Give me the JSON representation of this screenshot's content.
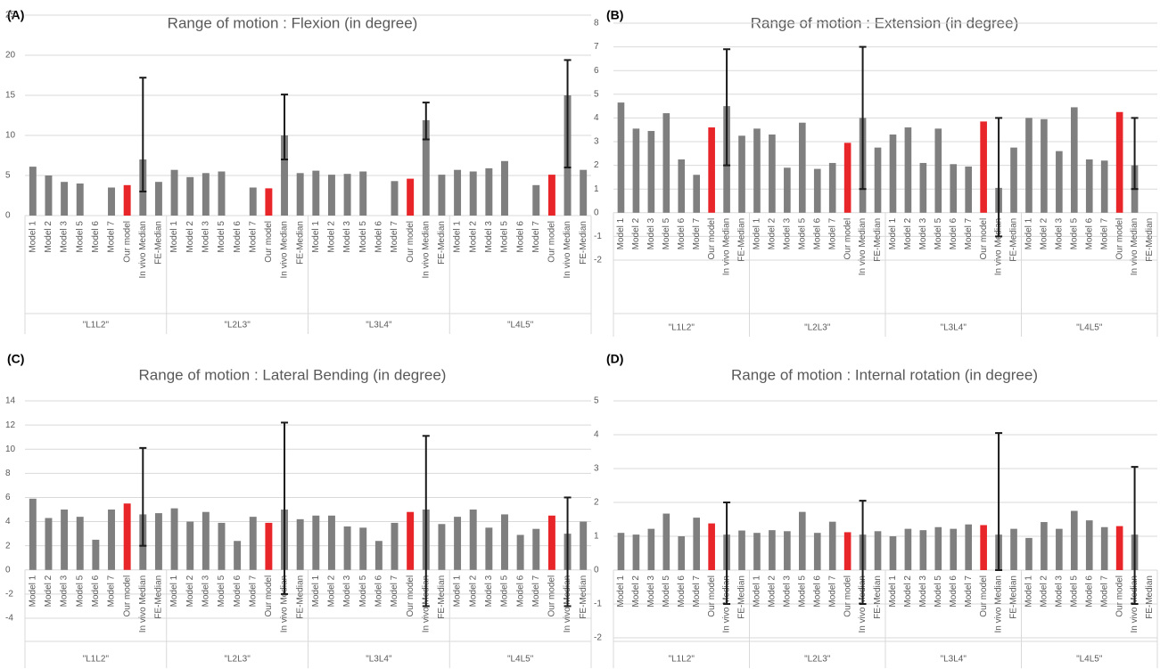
{
  "chart_data": [
    {
      "type": "bar",
      "panel_label": "(A)",
      "title": "Range of motion : Flexion (in degree)",
      "categories": [
        "Model 1",
        "Model 2",
        "Model 3",
        "Model 5",
        "Model 6",
        "Model 7",
        "Our model",
        "In vivo Median",
        "FE-Median"
      ],
      "colors": [
        "#7f7f7f",
        "#7f7f7f",
        "#7f7f7f",
        "#7f7f7f",
        "#7f7f7f",
        "#7f7f7f",
        "#e8262a",
        "#7f7f7f",
        "#7f7f7f"
      ],
      "error_color": "#1a1a1a",
      "groups": [
        {
          "name": "\"L1L2\"",
          "values": [
            6.1,
            5.0,
            4.2,
            4.0,
            null,
            3.5,
            3.8,
            7.0,
            4.2
          ],
          "error_low": [
            null,
            null,
            null,
            null,
            null,
            null,
            null,
            3.0,
            null
          ],
          "error_high": [
            null,
            null,
            null,
            null,
            null,
            null,
            null,
            17.2,
            null
          ]
        },
        {
          "name": "\"L2L3\"",
          "values": [
            5.7,
            4.8,
            5.3,
            5.5,
            null,
            3.5,
            3.4,
            10.0,
            5.3
          ],
          "error_low": [
            null,
            null,
            null,
            null,
            null,
            null,
            null,
            7.0,
            null
          ],
          "error_high": [
            null,
            null,
            null,
            null,
            null,
            null,
            null,
            15.1,
            null
          ]
        },
        {
          "name": "\"L3L4\"",
          "values": [
            5.6,
            5.1,
            5.2,
            5.5,
            null,
            4.3,
            4.6,
            11.9,
            5.1
          ],
          "error_low": [
            null,
            null,
            null,
            null,
            null,
            null,
            null,
            9.5,
            null
          ],
          "error_high": [
            null,
            null,
            null,
            null,
            null,
            null,
            null,
            14.1,
            null
          ]
        },
        {
          "name": "\"L4L5\"",
          "values": [
            5.7,
            5.5,
            5.9,
            6.8,
            null,
            3.8,
            5.1,
            15.0,
            5.7
          ],
          "error_low": [
            null,
            null,
            null,
            null,
            null,
            null,
            null,
            6.0,
            null
          ],
          "error_high": [
            null,
            null,
            null,
            null,
            null,
            null,
            null,
            19.4,
            null
          ]
        }
      ],
      "ylim": [
        0,
        25
      ],
      "yticks": [
        0,
        5,
        10,
        15,
        20,
        25
      ],
      "grid": true
    },
    {
      "type": "bar",
      "panel_label": "(B)",
      "title": "Range of motion : Extension (in degree)",
      "categories": [
        "Model 1",
        "Model 2",
        "Model 3",
        "Model 5",
        "Model 6",
        "Model 7",
        "Our model",
        "In vivo Median",
        "FE-Median"
      ],
      "colors": [
        "#7f7f7f",
        "#7f7f7f",
        "#7f7f7f",
        "#7f7f7f",
        "#7f7f7f",
        "#7f7f7f",
        "#e8262a",
        "#7f7f7f",
        "#7f7f7f"
      ],
      "error_color": "#1a1a1a",
      "groups": [
        {
          "name": "\"L1L2\"",
          "values": [
            4.65,
            3.55,
            3.45,
            4.2,
            2.25,
            1.6,
            3.6,
            4.5,
            3.25
          ],
          "error_low": [
            null,
            null,
            null,
            null,
            null,
            null,
            null,
            2.0,
            null
          ],
          "error_high": [
            null,
            null,
            null,
            null,
            null,
            null,
            null,
            6.9,
            null
          ]
        },
        {
          "name": "\"L2L3\"",
          "values": [
            3.55,
            3.3,
            1.9,
            3.8,
            1.85,
            2.1,
            2.95,
            4.0,
            2.75
          ],
          "error_low": [
            null,
            null,
            null,
            null,
            null,
            null,
            null,
            1.0,
            null
          ],
          "error_high": [
            null,
            null,
            null,
            null,
            null,
            null,
            null,
            7.0,
            null
          ]
        },
        {
          "name": "\"L3L4\"",
          "values": [
            3.3,
            3.6,
            2.1,
            3.55,
            2.05,
            1.95,
            3.85,
            1.05,
            2.75
          ],
          "error_low": [
            null,
            null,
            null,
            null,
            null,
            null,
            null,
            -1.0,
            null
          ],
          "error_high": [
            null,
            null,
            null,
            null,
            null,
            null,
            null,
            4.0,
            null
          ]
        },
        {
          "name": "\"L4L5\"",
          "values": [
            4.0,
            3.95,
            2.6,
            4.45,
            2.25,
            2.2,
            4.25,
            2.0,
            null
          ],
          "error_low": [
            null,
            null,
            null,
            null,
            null,
            null,
            null,
            1.0,
            null
          ],
          "error_high": [
            null,
            null,
            null,
            null,
            null,
            null,
            null,
            4.0,
            null
          ]
        }
      ],
      "ylim": [
        -2,
        8
      ],
      "yticks": [
        -2,
        -1,
        0,
        1,
        2,
        3,
        4,
        5,
        6,
        7,
        8
      ],
      "grid": true
    },
    {
      "type": "bar",
      "panel_label": "(C)",
      "title": "Range of motion : Lateral Bending (in degree)",
      "categories": [
        "Model 1",
        "Model 2",
        "Model 3",
        "Model 5",
        "Model 6",
        "Model 7",
        "Our model",
        "In vivo Median",
        "FE-Median"
      ],
      "colors": [
        "#7f7f7f",
        "#7f7f7f",
        "#7f7f7f",
        "#7f7f7f",
        "#7f7f7f",
        "#7f7f7f",
        "#e8262a",
        "#7f7f7f",
        "#7f7f7f"
      ],
      "error_color": "#1a1a1a",
      "groups": [
        {
          "name": "\"L1L2\"",
          "values": [
            5.9,
            4.3,
            5.0,
            4.4,
            2.5,
            5.0,
            5.5,
            4.6,
            4.7
          ],
          "error_low": [
            null,
            null,
            null,
            null,
            null,
            null,
            null,
            2.0,
            null
          ],
          "error_high": [
            null,
            null,
            null,
            null,
            null,
            null,
            null,
            10.1,
            null
          ]
        },
        {
          "name": "\"L2L3\"",
          "values": [
            5.1,
            4.0,
            4.8,
            3.9,
            2.4,
            4.4,
            3.9,
            5.0,
            4.2
          ],
          "error_low": [
            null,
            null,
            null,
            null,
            null,
            null,
            null,
            -2.0,
            null
          ],
          "error_high": [
            null,
            null,
            null,
            null,
            null,
            null,
            null,
            12.2,
            null
          ]
        },
        {
          "name": "\"L3L4\"",
          "values": [
            4.5,
            4.5,
            3.6,
            3.5,
            2.4,
            3.9,
            4.8,
            5.0,
            3.8
          ],
          "error_low": [
            null,
            null,
            null,
            null,
            null,
            null,
            null,
            -3.0,
            null
          ],
          "error_high": [
            null,
            null,
            null,
            null,
            null,
            null,
            null,
            11.1,
            null
          ]
        },
        {
          "name": "\"L4L5\"",
          "values": [
            4.4,
            5.0,
            3.5,
            4.6,
            2.9,
            3.4,
            4.5,
            3.0,
            4.0
          ],
          "error_low": [
            null,
            null,
            null,
            null,
            null,
            null,
            null,
            -3.0,
            null
          ],
          "error_high": [
            null,
            null,
            null,
            null,
            null,
            null,
            null,
            6.0,
            null
          ]
        }
      ],
      "ylim": [
        -4,
        14
      ],
      "yticks": [
        -4,
        -2,
        0,
        2,
        4,
        6,
        8,
        10,
        12,
        14
      ],
      "grid": true
    },
    {
      "type": "bar",
      "panel_label": "(D)",
      "title": "Range of motion : Internal rotation (in degree)",
      "categories": [
        "Model 1",
        "Model 2",
        "Model 3",
        "Model 5",
        "Model 6",
        "Model 7",
        "Our model",
        "In vivo Median",
        "FE-Median"
      ],
      "colors": [
        "#7f7f7f",
        "#7f7f7f",
        "#7f7f7f",
        "#7f7f7f",
        "#7f7f7f",
        "#7f7f7f",
        "#e8262a",
        "#7f7f7f",
        "#7f7f7f"
      ],
      "error_color": "#1a1a1a",
      "groups": [
        {
          "name": "\"L1L2\"",
          "values": [
            1.1,
            1.05,
            1.22,
            1.67,
            1.0,
            1.55,
            1.38,
            1.05,
            1.17
          ],
          "error_low": [
            null,
            null,
            null,
            null,
            null,
            null,
            null,
            -1.0,
            null
          ],
          "error_high": [
            null,
            null,
            null,
            null,
            null,
            null,
            null,
            2.0,
            null
          ]
        },
        {
          "name": "\"L2L3\"",
          "values": [
            1.1,
            1.18,
            1.15,
            1.72,
            1.1,
            1.43,
            1.12,
            1.05,
            1.15
          ],
          "error_low": [
            null,
            null,
            null,
            null,
            null,
            null,
            null,
            -1.0,
            null
          ],
          "error_high": [
            null,
            null,
            null,
            null,
            null,
            null,
            null,
            2.05,
            null
          ]
        },
        {
          "name": "\"L3L4\"",
          "values": [
            1.0,
            1.22,
            1.18,
            1.27,
            1.22,
            1.35,
            1.33,
            1.05,
            1.22
          ],
          "error_low": [
            null,
            null,
            null,
            null,
            null,
            null,
            null,
            0.0,
            null
          ],
          "error_high": [
            null,
            null,
            null,
            null,
            null,
            null,
            null,
            4.05,
            null
          ]
        },
        {
          "name": "\"L4L5\"",
          "values": [
            0.95,
            1.42,
            1.22,
            1.75,
            1.47,
            1.27,
            1.3,
            1.05,
            null
          ],
          "error_low": [
            null,
            null,
            null,
            null,
            null,
            null,
            null,
            -1.0,
            null
          ],
          "error_high": [
            null,
            null,
            null,
            null,
            null,
            null,
            null,
            3.05,
            null
          ]
        }
      ],
      "ylim": [
        -2,
        5
      ],
      "yticks": [
        -2,
        -1,
        0,
        1,
        2,
        3,
        4,
        5
      ],
      "grid": true
    }
  ]
}
